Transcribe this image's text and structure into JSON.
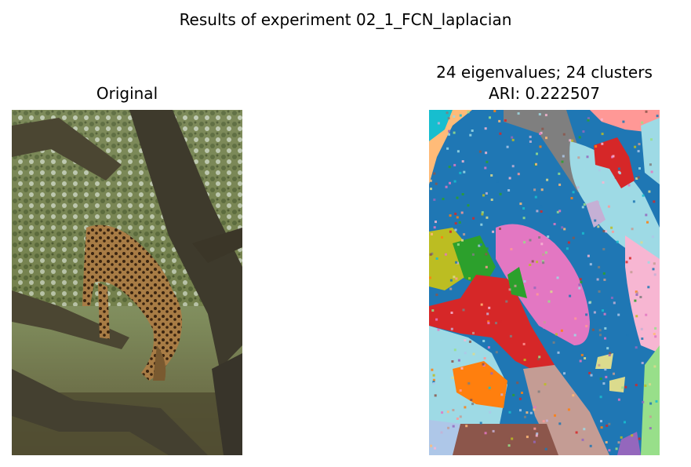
{
  "figure": {
    "suptitle": "Results of experiment 02_1_FCN_laplacian"
  },
  "panels": {
    "original": {
      "title": "Original"
    },
    "result": {
      "title_line1": "24 eigenvalues; 24 clusters",
      "title_line2": "ARI: 0.222507"
    }
  },
  "colors": {
    "cluster_palette": [
      "#1f77b4",
      "#d62728",
      "#e377c2",
      "#9edae5",
      "#c49c94",
      "#8c564b",
      "#f7b6d2",
      "#bcbd22",
      "#ff7f0e",
      "#2ca02c",
      "#7f7f7f",
      "#ffbb78",
      "#ff9896",
      "#aec7e8",
      "#17becf",
      "#98df8a",
      "#9467bd",
      "#dbdb8d",
      "#c5b0d5"
    ]
  }
}
